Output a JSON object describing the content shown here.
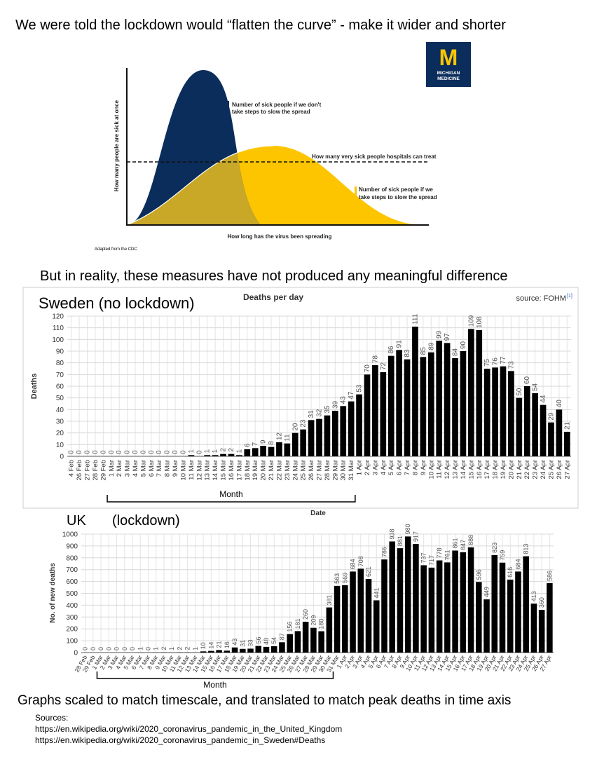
{
  "header": "We were told the lockdown would “flatten the curve” - make it wider and shorter",
  "diagram": {
    "ylabel": "How many people are sick at once",
    "xlabel": "How long has the virus been spreading",
    "no_action_label": [
      "Number of sick people if we don't",
      "take steps to slow the spread"
    ],
    "capacity_label": "How many very sick people hospitals can treat",
    "action_label": [
      "Number of sick people if we",
      "take steps to slow the spread"
    ],
    "credit": "Adapted from the CDC",
    "logo": [
      "M",
      "MICHIGAN",
      "MEDICINE"
    ]
  },
  "middle_text": "But in reality, these measures have not produced any meaningful difference",
  "chart_data": [
    {
      "type": "bar",
      "title": "Deaths per day",
      "country_label": "Sweden (no lockdown)",
      "source": "source: FOHM",
      "source_ref": "[1]",
      "ylabel": "Deaths",
      "xlabel": "Date",
      "annotation": "Month",
      "color": "#000000",
      "grid": true,
      "categories": [
        "4 Feb",
        "26 Feb",
        "27 Feb",
        "28 Feb",
        "29 Feb",
        "1 Mar",
        "2 Mar",
        "3 Mar",
        "4 Mar",
        "5 Mar",
        "6 Mar",
        "7 Mar",
        "8 Mar",
        "9 Mar",
        "10 Mar",
        "11 Mar",
        "12 Mar",
        "13 Mar",
        "14 Mar",
        "15 Mar",
        "16 Mar",
        "17 Mar",
        "18 Mar",
        "19 Mar",
        "20 Mar",
        "21 Mar",
        "22 Mar",
        "23 Mar",
        "24 Mar",
        "25 Mar",
        "26 Mar",
        "27 Mar",
        "28 Mar",
        "29 Mar",
        "30 Mar",
        "31 Mar",
        "1 Apr",
        "2 Apr",
        "3 Apr",
        "4 Apr",
        "5 Apr",
        "6 Apr",
        "7 Apr",
        "8 Apr",
        "9 Apr",
        "10 Apr",
        "11 Apr",
        "12 Apr",
        "13 Apr",
        "14 Apr",
        "15 Apr",
        "16 Apr",
        "17 Apr",
        "18 Apr",
        "19 Apr",
        "20 Apr",
        "21 Apr",
        "22 Apr",
        "23 Apr",
        "24 Apr",
        "25 Apr",
        "26 Apr",
        "27 Apr"
      ],
      "values": [
        0,
        0,
        0,
        0,
        0,
        0,
        0,
        0,
        0,
        0,
        0,
        0,
        0,
        0,
        0,
        1,
        0,
        1,
        1,
        2,
        2,
        1,
        6,
        7,
        9,
        8,
        12,
        11,
        20,
        23,
        31,
        32,
        35,
        39,
        43,
        47,
        53,
        70,
        78,
        72,
        86,
        91,
        83,
        111,
        85,
        89,
        99,
        97,
        84,
        90,
        109,
        108,
        75,
        76,
        77,
        73,
        50,
        60,
        54,
        44,
        29,
        40,
        21
      ],
      "ylim": [
        0,
        120
      ],
      "yticks": [
        0,
        10,
        20,
        30,
        40,
        50,
        60,
        70,
        80,
        90,
        100,
        110,
        120
      ]
    },
    {
      "type": "bar",
      "title": "UK",
      "subtitle": "(lockdown)",
      "ylabel": "No. of new deaths",
      "annotation": "Month",
      "color": "#000000",
      "grid": true,
      "categories": [
        "28 Feb",
        "29 Feb",
        "1 Mar",
        "2 Mar",
        "3 Mar",
        "4 Mar",
        "5 Mar",
        "6 Mar",
        "7 Mar",
        "8 Mar",
        "9 Mar",
        "10 Mar",
        "11 Mar",
        "12 Mar",
        "13 Mar",
        "14 Mar",
        "15 Mar",
        "16 Mar",
        "17 Mar",
        "18 Mar",
        "19 Mar",
        "20 Mar",
        "21 Mar",
        "22 Mar",
        "23 Mar",
        "24 Mar",
        "25 Mar",
        "26 Mar",
        "27 Mar",
        "28 Mar",
        "29 Mar",
        "30 Mar",
        "31 Mar",
        "1 Apr",
        "2 Apr",
        "3 Apr",
        "4 Apr",
        "5 Apr",
        "6 Apr",
        "7 Apr",
        "8 Apr",
        "9 Apr",
        "10 Apr",
        "11 Apr",
        "12 Apr",
        "13 Apr",
        "14 Apr",
        "15 Apr",
        "16 Apr",
        "17 Apr",
        "18 Apr",
        "19 Apr",
        "20 Apr",
        "21 Apr",
        "22 Apr",
        "23 Apr",
        "24 Apr",
        "25 Apr",
        "26 Apr",
        "27 Apr"
      ],
      "values": [
        0,
        0,
        0,
        0,
        0,
        0,
        0,
        1,
        0,
        1,
        2,
        1,
        2,
        2,
        1,
        10,
        14,
        21,
        16,
        43,
        31,
        33,
        56,
        48,
        54,
        87,
        156,
        181,
        260,
        209,
        180,
        381,
        563,
        569,
        684,
        708,
        621,
        441,
        786,
        938,
        881,
        980,
        917,
        737,
        717,
        778,
        761,
        861,
        847,
        888,
        596,
        449,
        823,
        759,
        616,
        684,
        813,
        413,
        360,
        586
      ],
      "ylim": [
        0,
        1000
      ],
      "yticks": [
        0,
        100,
        200,
        300,
        400,
        500,
        600,
        700,
        800,
        900,
        1000
      ]
    }
  ],
  "footer": "Graphs scaled to match timescale, and translated to match peak deaths in time axis",
  "sources": {
    "heading": "Sources:",
    "links": [
      "https://en.wikipedia.org/wiki/2020_coronavirus_pandemic_in_the_United_Kingdom",
      "https://en.wikipedia.org/wiki/2020_coronavirus_pandemic_in_Sweden#Deaths"
    ]
  }
}
